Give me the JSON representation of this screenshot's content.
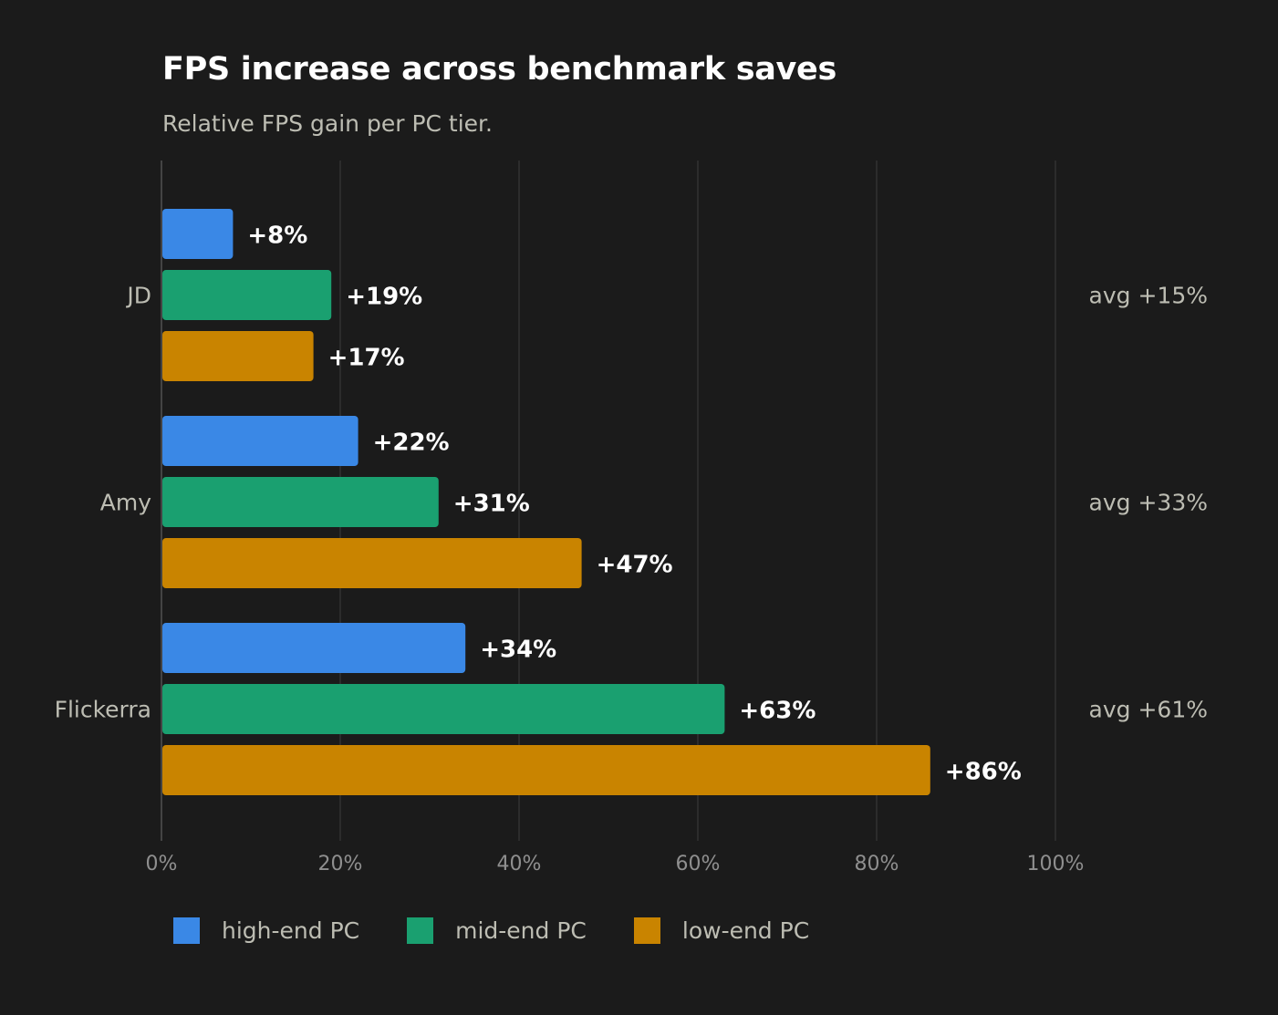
{
  "chart": {
    "title": "FPS increase across benchmark saves",
    "subtitle": "Relative FPS gain per PC tier."
  },
  "chart_data": {
    "type": "bar",
    "orientation": "horizontal",
    "categories": [
      "JD",
      "Amy",
      "Flickerra"
    ],
    "series": [
      {
        "name": "high-end PC",
        "color": "#3a88e6",
        "values": [
          8,
          22,
          34
        ]
      },
      {
        "name": "mid-end PC",
        "color": "#1aa070",
        "values": [
          19,
          31,
          63
        ]
      },
      {
        "name": "low-end PC",
        "color": "#c98400",
        "values": [
          17,
          47,
          86
        ]
      }
    ],
    "data_labels": [
      [
        "+8%",
        "+22%",
        "+34%"
      ],
      [
        "+19%",
        "+31%",
        "+63%"
      ],
      [
        "+17%",
        "+47%",
        "+86%"
      ]
    ],
    "averages": [
      "avg +15%",
      "avg +33%",
      "avg +61%"
    ],
    "xlim": [
      0,
      100
    ],
    "xticks": [
      0,
      20,
      40,
      60,
      80,
      100
    ],
    "xtick_labels": [
      "0%",
      "20%",
      "40%",
      "60%",
      "80%",
      "100%"
    ],
    "grid": true,
    "legend_position": "bottom-left",
    "colors": {
      "background": "#1b1b1b",
      "grid": "#333333",
      "axis_text": "#8f8f8f",
      "category_text": "#bdbdb3",
      "label_text": "#ffffff"
    }
  }
}
